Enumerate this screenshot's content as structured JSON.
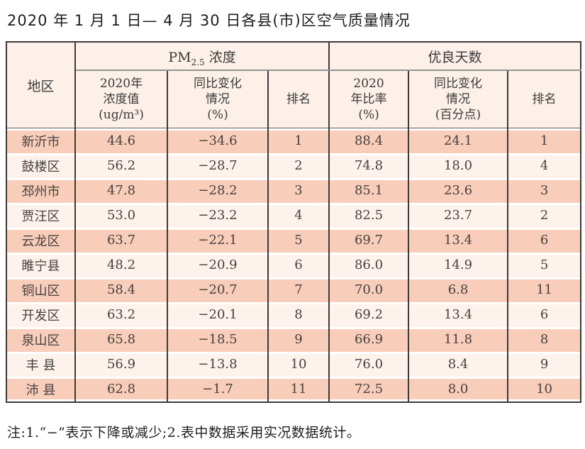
{
  "page": {
    "title": "2020 年 1 月 1 日— 4 月 30 日各县(市)区空气质量情况",
    "note": "注:1.“−”表示下降或减少;2.表中数据采用实况数据统计。"
  },
  "colors": {
    "row_odd": "#f8cdb9",
    "row_even": "#fdf3ec",
    "header_bg": "#fcf0e8",
    "border": "#3e3a37",
    "group_divider": "#939393"
  },
  "table": {
    "region_header": "地区",
    "pm_group": {
      "prefix": "PM",
      "sub": "2.5",
      "suffix": " 浓度"
    },
    "good_group": "优良天数",
    "subheaders": [
      "2020年\n浓度值\n(ug/m³)",
      "同比变化\n情况\n(%)",
      "排名",
      "2020\n年比率\n(%)",
      "同比变化\n情况\n(百分点)",
      "排名"
    ],
    "rows": [
      [
        "新沂市",
        "44.6",
        "−34.6",
        "1",
        "88.4",
        "24.1",
        "1"
      ],
      [
        "鼓楼区",
        "56.2",
        "−28.7",
        "2",
        "74.8",
        "18.0",
        "4"
      ],
      [
        "邳州市",
        "47.8",
        "−28.2",
        "3",
        "85.1",
        "23.6",
        "3"
      ],
      [
        "贾汪区",
        "53.0",
        "−23.2",
        "4",
        "82.5",
        "23.7",
        "2"
      ],
      [
        "云龙区",
        "63.7",
        "−22.1",
        "5",
        "69.7",
        "13.4",
        "6"
      ],
      [
        "睢宁县",
        "48.2",
        "−20.9",
        "6",
        "86.0",
        "14.9",
        "5"
      ],
      [
        "铜山区",
        "58.4",
        "−20.7",
        "7",
        "70.0",
        "6.8",
        "11"
      ],
      [
        "开发区",
        "63.2",
        "−20.1",
        "8",
        "69.2",
        "13.4",
        "6"
      ],
      [
        "泉山区",
        "65.8",
        "−18.5",
        "9",
        "66.9",
        "11.8",
        "8"
      ],
      [
        "丰 县",
        "56.9",
        "−13.8",
        "10",
        "76.0",
        "8.4",
        "9"
      ],
      [
        "沛 县",
        "62.8",
        "−1.7",
        "11",
        "72.5",
        "8.0",
        "10"
      ]
    ]
  },
  "chart_data": {
    "type": "table",
    "title": "2020年1月1日—4月30日各县(市)区空气质量情况",
    "columns": [
      "地区",
      "PM2.5浓度 2020年浓度值(ug/m3)",
      "PM2.5浓度 同比变化情况(%)",
      "PM2.5浓度 排名",
      "优良天数 2020年比率(%)",
      "优良天数 同比变化情况(百分点)",
      "优良天数 排名"
    ],
    "rows": [
      [
        "新沂市",
        44.6,
        -34.6,
        1,
        88.4,
        24.1,
        1
      ],
      [
        "鼓楼区",
        56.2,
        -28.7,
        2,
        74.8,
        18.0,
        4
      ],
      [
        "邳州市",
        47.8,
        -28.2,
        3,
        85.1,
        23.6,
        3
      ],
      [
        "贾汪区",
        53.0,
        -23.2,
        4,
        82.5,
        23.7,
        2
      ],
      [
        "云龙区",
        63.7,
        -22.1,
        5,
        69.7,
        13.4,
        6
      ],
      [
        "睢宁县",
        48.2,
        -20.9,
        6,
        86.0,
        14.9,
        5
      ],
      [
        "铜山区",
        58.4,
        -20.7,
        7,
        70.0,
        6.8,
        11
      ],
      [
        "开发区",
        63.2,
        -20.1,
        8,
        69.2,
        13.4,
        6
      ],
      [
        "泉山区",
        65.8,
        -18.5,
        9,
        66.9,
        11.8,
        8
      ],
      [
        "丰县",
        56.9,
        -13.8,
        10,
        76.0,
        8.4,
        9
      ],
      [
        "沛县",
        62.8,
        -1.7,
        11,
        72.5,
        8.0,
        10
      ]
    ],
    "footnote": "注:1.“−”表示下降或减少;2.表中数据采用实况数据统计。"
  }
}
